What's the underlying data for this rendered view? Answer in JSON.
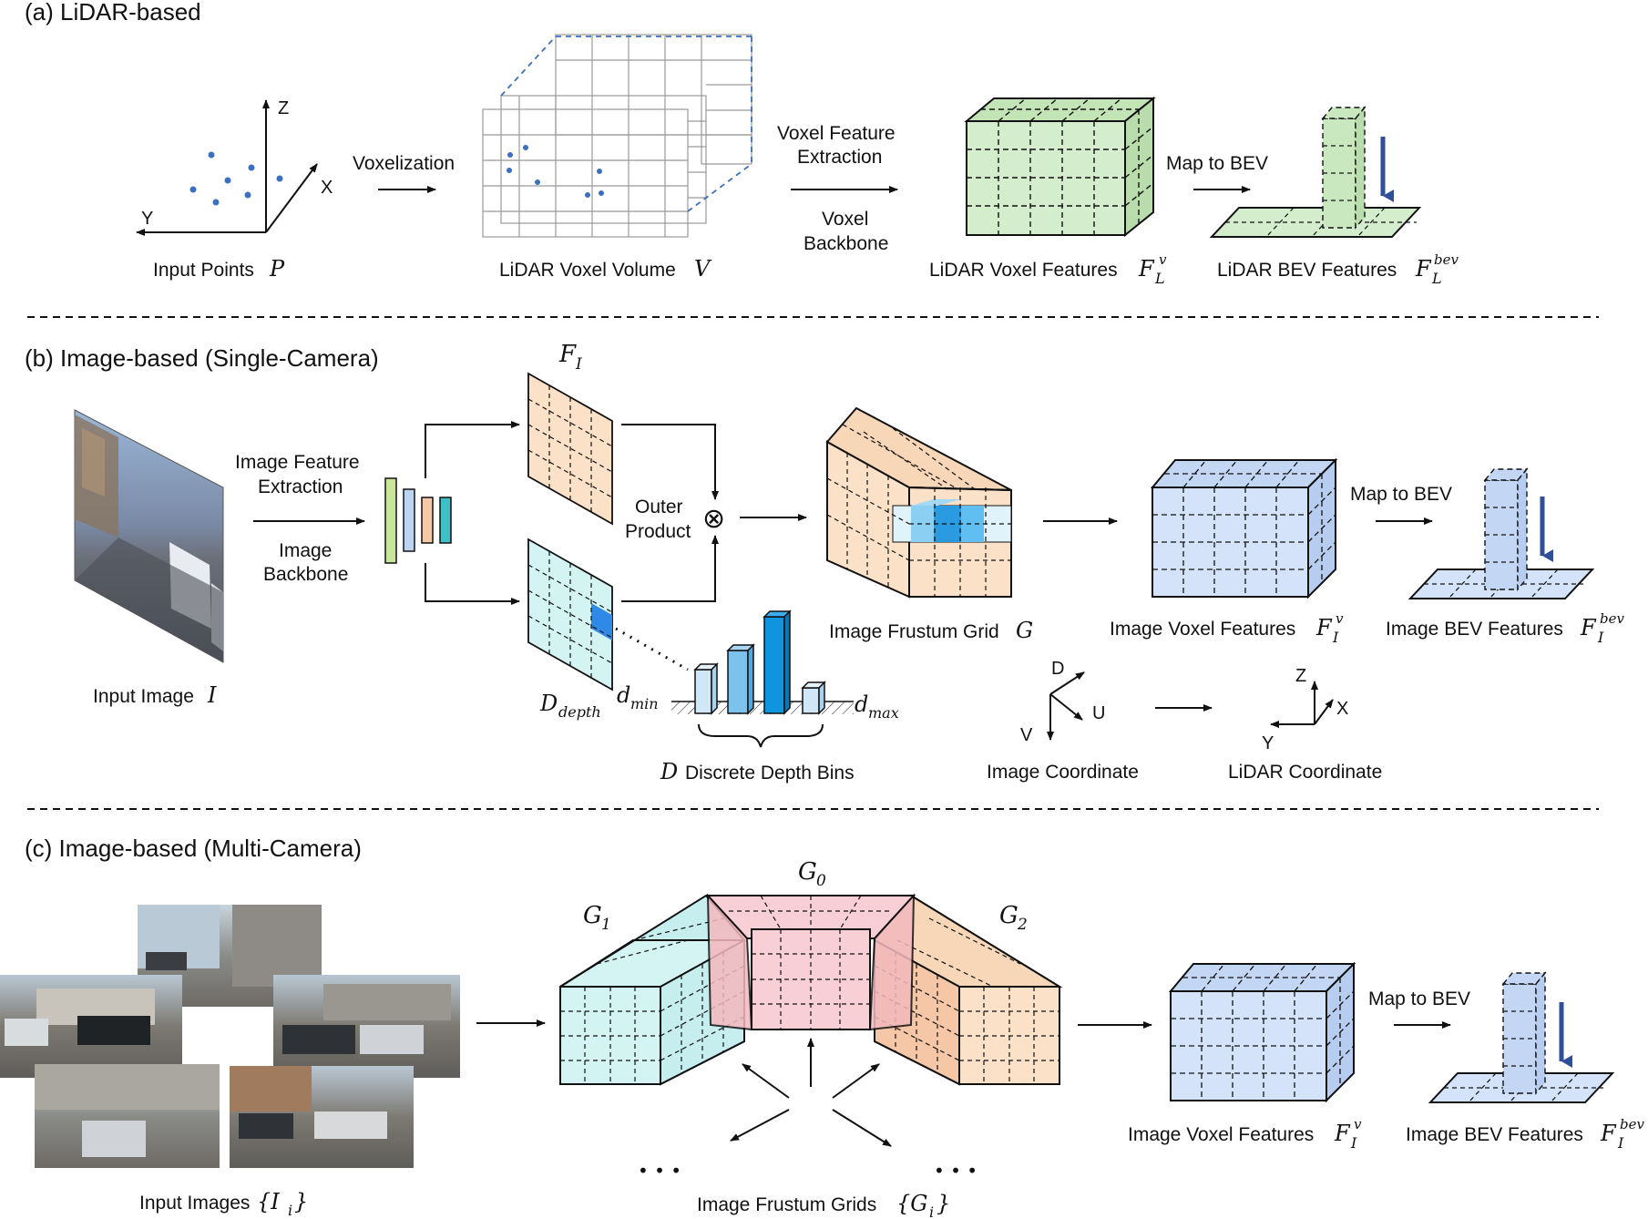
{
  "sections": {
    "a": "(a) LiDAR-based",
    "b": "(b) Image-based (Single-Camera)",
    "c": "(c) Image-based (Multi-Camera)"
  },
  "lidar": {
    "input_points": "Input Points",
    "input_points_sym": "P",
    "voxelization": "Voxelization",
    "voxel_volume": "LiDAR Voxel Volume",
    "voxel_volume_sym": "V",
    "vfe_line1": "Voxel Feature",
    "vfe_line2": "Extraction",
    "backbone_line1": "Voxel",
    "backbone_line2": "Backbone",
    "voxel_features": "LiDAR Voxel Features",
    "voxel_features_sym": "F",
    "voxel_features_sub": "L",
    "voxel_features_sup": "v",
    "map_to_bev": "Map to BEV",
    "bev_features": "LiDAR BEV Features",
    "bev_features_sym": "F",
    "bev_features_sub": "L",
    "bev_features_sup": "bev",
    "axis_z": "Z",
    "axis_x": "X",
    "axis_y": "Y"
  },
  "single": {
    "ife_line1": "Image Feature",
    "ife_line2": "Extraction",
    "ib_line1": "Image",
    "ib_line2": "Backbone",
    "input_image": "Input Image",
    "input_image_sym": "I",
    "fi_sym": "F",
    "fi_sub": "I",
    "outer_line1": "Outer",
    "outer_line2": "Product",
    "otimes": "⊗",
    "d_depth_sym": "D",
    "d_depth_sub": "depth",
    "dmin_sym": "d",
    "dmin_sub": "min",
    "dmax_sym": "d",
    "dmax_sub": "max",
    "depth_bins_sym": "D",
    "depth_bins": "Discrete Depth Bins",
    "frustum_grid": "Image Frustum Grid",
    "frustum_grid_sym": "G",
    "voxel_features": "Image Voxel Features",
    "voxel_features_sym": "F",
    "voxel_features_sub": "I",
    "voxel_features_sup": "v",
    "map_to_bev": "Map to BEV",
    "bev_features": "Image BEV Features",
    "bev_features_sym": "F",
    "bev_features_sub": "I",
    "bev_features_sup": "bev",
    "img_coord": "Image Coordinate",
    "lidar_coord": "LiDAR Coordinate",
    "ax_d": "D",
    "ax_u": "U",
    "ax_v": "V",
    "ax_z": "Z",
    "ax_x": "X",
    "ax_y": "Y"
  },
  "multi": {
    "input_images": "Input Images",
    "input_images_sym": "{I",
    "input_images_sub": "i",
    "input_images_close": "}",
    "g0": "G",
    "g0_sub": "0",
    "g1": "G",
    "g1_sub": "1",
    "g2": "G",
    "g2_sub": "2",
    "frustum_grids": "Image Frustum Grids",
    "frustum_grids_sym": "{G",
    "frustum_grids_sub": "i",
    "frustum_grids_close": "}",
    "dots": "• • •",
    "voxel_features": "Image Voxel Features",
    "voxel_features_sym": "F",
    "voxel_features_sub": "I",
    "voxel_features_sup": "v",
    "map_to_bev": "Map to BEV",
    "bev_features": "Image BEV Features",
    "bev_features_sym": "F",
    "bev_features_sub": "I",
    "bev_features_sup": "bev"
  },
  "colors": {
    "green": "#d4edcc",
    "orange": "#fbe1c8",
    "blue": "#d4e3f9",
    "cyan": "#d4f4f4",
    "pink": "#f8cfd4",
    "arrow_blue": "#2f4f9a",
    "dot_blue": "#3b6fbf"
  }
}
